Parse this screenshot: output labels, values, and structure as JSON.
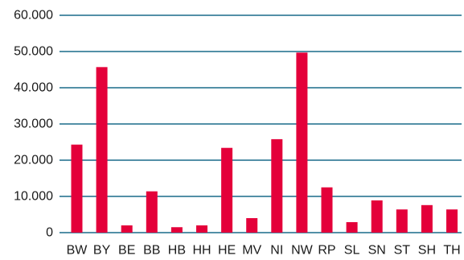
{
  "chart_data": {
    "type": "bar",
    "categories": [
      "BW",
      "BY",
      "BE",
      "BB",
      "HB",
      "HH",
      "HE",
      "MV",
      "NI",
      "NW",
      "RP",
      "SL",
      "SN",
      "ST",
      "SH",
      "TH"
    ],
    "values": [
      24300,
      45700,
      2000,
      11400,
      1500,
      2000,
      23400,
      4000,
      25800,
      49700,
      12500,
      2900,
      8900,
      6400,
      7600,
      6400
    ],
    "title": "",
    "xlabel": "",
    "ylabel": "",
    "ylim": [
      0,
      60000
    ],
    "yticks": [
      {
        "value": 0,
        "label": "0"
      },
      {
        "value": 10000,
        "label": "10.000"
      },
      {
        "value": 20000,
        "label": "20.000"
      },
      {
        "value": 30000,
        "label": "30.000"
      },
      {
        "value": 40000,
        "label": "40.000"
      },
      {
        "value": 50000,
        "label": "50.000"
      },
      {
        "value": 60000,
        "label": "60.000"
      }
    ],
    "grid": true,
    "legend": "none",
    "colors": {
      "bar": "#e4003a",
      "grid": "#1a6b8a",
      "text": "#1a1a1a"
    }
  }
}
